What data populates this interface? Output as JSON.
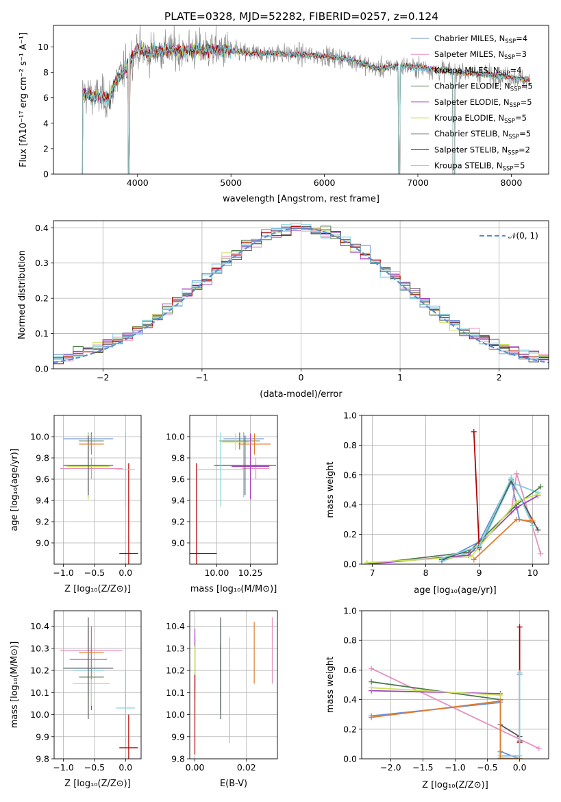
{
  "figure_title": "PLATE=0328, MJD=52282, FIBERID=0257, z=0.124",
  "colors": {
    "models": [
      "#6a8fd8",
      "#e58fbf",
      "#7ec8e3",
      "#4f7a4a",
      "#a63fbf",
      "#c8e35a",
      "#555555",
      "#b30000",
      "#7fd4d4"
    ],
    "orange": "#e07b2a",
    "normal_curve": "#5b8bd6",
    "axis": "#000000",
    "grid": "#b0b0b0"
  },
  "legend": [
    {
      "base": "Chabrier MILES, N",
      "sub": "SSP",
      "tail": "=4"
    },
    {
      "base": "Salpeter MILES, N",
      "sub": "SSP",
      "tail": "=3"
    },
    {
      "base": "Kroupa MILES, N",
      "sub": "SSP",
      "tail": "=4"
    },
    {
      "base": "Chabrier ELODIE, N",
      "sub": "SSP",
      "tail": "=5"
    },
    {
      "base": "Salpeter ELODIE, N",
      "sub": "SSP",
      "tail": "=5"
    },
    {
      "base": "Kroupa ELODIE, N",
      "sub": "SSP",
      "tail": "=5"
    },
    {
      "base": "Chabrier STELIB, N",
      "sub": "SSP",
      "tail": "=5"
    },
    {
      "base": "Salpeter STELIB, N",
      "sub": "SSP",
      "tail": "=2"
    },
    {
      "base": "Kroupa STELIB, N",
      "sub": "SSP",
      "tail": "=5"
    }
  ],
  "chart_data": [
    {
      "id": "spectrum",
      "type": "line",
      "xlabel": "wavelength [Angstrom, rest frame]",
      "ylabel": "Flux [fλ10⁻¹⁷ erg cm⁻² s⁻¹ A⁻¹]",
      "xlim": [
        3100,
        8400
      ],
      "ylim": [
        0,
        11.7
      ],
      "xticks": [
        4000,
        5000,
        6000,
        7000,
        8000
      ],
      "yticks": [
        0,
        2,
        4,
        6,
        8,
        10
      ],
      "grid": false,
      "legend_position": "top-right",
      "data_range_x": [
        3380,
        8200
      ],
      "model_continuum": [
        [
          3380,
          6.4
        ],
        [
          3500,
          6.2
        ],
        [
          3700,
          5.9
        ],
        [
          3760,
          7.2
        ],
        [
          3900,
          8.6
        ],
        [
          4000,
          9.9
        ],
        [
          4100,
          9.5
        ],
        [
          4300,
          9.8
        ],
        [
          4500,
          9.7
        ],
        [
          4800,
          9.8
        ],
        [
          5000,
          9.7
        ],
        [
          5200,
          9.5
        ],
        [
          5500,
          9.5
        ],
        [
          6000,
          9.3
        ],
        [
          6300,
          9.0
        ],
        [
          6560,
          8.3
        ],
        [
          6800,
          8.5
        ],
        [
          7000,
          8.4
        ],
        [
          7200,
          8.2
        ],
        [
          7500,
          8.0
        ],
        [
          7800,
          7.8
        ],
        [
          8000,
          7.6
        ],
        [
          8200,
          7.4
        ]
      ],
      "gaps": [
        [
          3380,
          3410
        ],
        [
          3900,
          3915
        ],
        [
          6790,
          6810
        ],
        [
          7375,
          7395
        ]
      ]
    },
    {
      "id": "residuals",
      "type": "histogram",
      "xlabel": "(data-model)/error",
      "ylabel": "Normed distribution",
      "xlim": [
        -2.5,
        2.5
      ],
      "ylim": [
        0,
        0.42
      ],
      "xticks": [
        -2,
        -1,
        0,
        1,
        2
      ],
      "yticks": [
        0.0,
        0.1,
        0.2,
        0.3,
        0.4
      ],
      "grid": true,
      "legend": "𝒩(0, 1)",
      "legend_position": "top-right",
      "bin_width": 0.1,
      "curve": "normal pdf mean 0 sigma 1"
    },
    {
      "id": "age-vs-z",
      "type": "errorbar",
      "xlabel": "Z [log₁₀(Z/Z⊙)]",
      "ylabel": "age  [log₁₀(age/yr)]",
      "xlim": [
        -1.15,
        0.25
      ],
      "ylim": [
        8.8,
        10.2
      ],
      "xticks": [
        -1.0,
        -0.5,
        0.0
      ],
      "yticks": [
        9.0,
        9.2,
        9.4,
        9.6,
        9.8,
        10.0
      ],
      "grid": true,
      "points": [
        {
          "model": 0,
          "x": -0.6,
          "xerr": 0.4,
          "y": 9.98,
          "yerr": 0.06
        },
        {
          "model": 1,
          "x": -0.55,
          "xerr": 0.5,
          "y": 9.7,
          "yerr": 0.1
        },
        {
          "model": 2,
          "x": -0.6,
          "xerr": 0.25,
          "y": 9.73,
          "yerr": 0.3
        },
        {
          "model": 3,
          "x": -0.55,
          "xerr": 0.2,
          "y": 9.96,
          "yerr": 0.08
        },
        {
          "model": 4,
          "x": -0.6,
          "xerr": 0.3,
          "y": 9.72,
          "yerr": 0.31
        },
        {
          "model": 5,
          "x": -0.6,
          "xerr": 0.35,
          "y": 9.72,
          "yerr": 0.31
        },
        {
          "model": 6,
          "x": -0.6,
          "xerr": 0.4,
          "y": 9.73,
          "yerr": 0.28
        },
        {
          "model": 7,
          "x": 0.05,
          "xerr": 0.15,
          "y": 8.9,
          "yerr": 0.85
        },
        {
          "model": 8,
          "x": 0.0,
          "xerr": 0.15,
          "y": 9.69,
          "yerr": 0.35
        },
        {
          "model": "orange",
          "x": -0.55,
          "xerr": 0.2,
          "y": 9.93,
          "yerr": 0.1
        }
      ]
    },
    {
      "id": "age-vs-mass",
      "type": "errorbar",
      "xlabel": "mass [log₁₀(M/M⊙)]",
      "ylabel": "",
      "xlim": [
        9.8,
        10.45
      ],
      "ylim": [
        8.8,
        10.2
      ],
      "xticks": [
        10.0,
        10.25
      ],
      "yticks": [
        9.0,
        9.2,
        9.4,
        9.6,
        9.8,
        10.0
      ],
      "grid": true,
      "points": [
        {
          "model": 0,
          "x": 10.2,
          "xerr": 0.15,
          "y": 9.98,
          "yerr": 0.06
        },
        {
          "model": 1,
          "x": 10.29,
          "xerr": 0.1,
          "y": 9.7,
          "yerr": 0.1
        },
        {
          "model": 2,
          "x": 10.2,
          "xerr": 0.2,
          "y": 9.73,
          "yerr": 0.3
        },
        {
          "model": 3,
          "x": 10.17,
          "xerr": 0.15,
          "y": 9.96,
          "yerr": 0.08
        },
        {
          "model": 4,
          "x": 10.25,
          "xerr": 0.14,
          "y": 9.72,
          "yerr": 0.31
        },
        {
          "model": 5,
          "x": 10.14,
          "xerr": 0.1,
          "y": 9.95,
          "yerr": 0.08
        },
        {
          "model": 6,
          "x": 10.21,
          "xerr": 0.23,
          "y": 9.73,
          "yerr": 0.28
        },
        {
          "model": 7,
          "x": 9.85,
          "xerr": 0.15,
          "y": 8.9,
          "yerr": 0.85
        },
        {
          "model": 8,
          "x": 10.03,
          "xerr": 0.17,
          "y": 9.69,
          "yerr": 0.35
        },
        {
          "model": "orange",
          "x": 10.28,
          "xerr": 0.12,
          "y": 9.93,
          "yerr": 0.1
        }
      ]
    },
    {
      "id": "massweight-vs-age",
      "type": "line",
      "xlabel": "age  [log₁₀(age/yr)]",
      "ylabel": "mass weight",
      "xlim": [
        6.8,
        10.3
      ],
      "ylim": [
        0,
        1.0
      ],
      "xticks": [
        7,
        8,
        9,
        10
      ],
      "yticks": [
        0.0,
        0.2,
        0.4,
        0.6,
        0.8,
        1.0
      ],
      "grid": true,
      "series": [
        {
          "model": 0,
          "points": [
            [
              8.3,
              0.02
            ],
            [
              9.0,
              0.15
            ],
            [
              9.6,
              0.57
            ],
            [
              9.75,
              0.3
            ],
            [
              10.0,
              0.28
            ]
          ]
        },
        {
          "model": 1,
          "points": [
            [
              9.6,
              0.35
            ],
            [
              9.7,
              0.61
            ],
            [
              10.15,
              0.07
            ]
          ]
        },
        {
          "model": 2,
          "points": [
            [
              8.3,
              0.02
            ],
            [
              9.0,
              0.1
            ],
            [
              9.6,
              0.55
            ],
            [
              10.1,
              0.48
            ]
          ]
        },
        {
          "model": 3,
          "points": [
            [
              6.9,
              0.0
            ],
            [
              8.8,
              0.08
            ],
            [
              9.7,
              0.4
            ],
            [
              10.15,
              0.52
            ]
          ]
        },
        {
          "model": 4,
          "points": [
            [
              6.9,
              0.0
            ],
            [
              8.8,
              0.06
            ],
            [
              9.7,
              0.38
            ],
            [
              10.1,
              0.46
            ]
          ]
        },
        {
          "model": 5,
          "points": [
            [
              6.9,
              0.01
            ],
            [
              8.85,
              0.05
            ],
            [
              9.7,
              0.42
            ],
            [
              10.1,
              0.47
            ]
          ]
        },
        {
          "model": 6,
          "points": [
            [
              8.3,
              0.03
            ],
            [
              9.0,
              0.12
            ],
            [
              9.6,
              0.56
            ],
            [
              10.1,
              0.23
            ]
          ]
        },
        {
          "model": 7,
          "points": [
            [
              8.9,
              0.89
            ],
            [
              9.0,
              0.11
            ]
          ]
        },
        {
          "model": 8,
          "points": [
            [
              8.3,
              0.04
            ],
            [
              9.0,
              0.12
            ],
            [
              9.6,
              0.58
            ],
            [
              10.0,
              0.26
            ]
          ]
        },
        {
          "model": "orange",
          "points": [
            [
              8.9,
              0.03
            ],
            [
              9.7,
              0.3
            ],
            [
              10.0,
              0.29
            ]
          ]
        }
      ]
    },
    {
      "id": "mass-vs-z",
      "type": "errorbar",
      "xlabel": "Z [log₁₀(Z/Z⊙)]",
      "ylabel": "mass [log₁₀(M/M⊙)]",
      "xlim": [
        -1.15,
        0.25
      ],
      "ylim": [
        9.8,
        10.47
      ],
      "xticks": [
        -1.0,
        -0.5,
        0.0
      ],
      "yticks": [
        9.8,
        9.9,
        10.0,
        10.1,
        10.2,
        10.3,
        10.4
      ],
      "grid": true,
      "points": [
        {
          "model": 0,
          "x": -0.6,
          "xerr": 0.4,
          "y": 10.21,
          "yerr": 0.15
        },
        {
          "model": 1,
          "x": -0.55,
          "xerr": 0.5,
          "y": 10.29,
          "yerr": 0.1
        },
        {
          "model": 2,
          "x": -0.6,
          "xerr": 0.25,
          "y": 10.2,
          "yerr": 0.2
        },
        {
          "model": 3,
          "x": -0.55,
          "xerr": 0.2,
          "y": 10.17,
          "yerr": 0.15
        },
        {
          "model": 4,
          "x": -0.6,
          "xerr": 0.3,
          "y": 10.25,
          "yerr": 0.14
        },
        {
          "model": 5,
          "x": -0.55,
          "xerr": 0.3,
          "y": 10.14,
          "yerr": 0.1
        },
        {
          "model": 6,
          "x": -0.6,
          "xerr": 0.4,
          "y": 10.21,
          "yerr": 0.23
        },
        {
          "model": 7,
          "x": 0.05,
          "xerr": 0.15,
          "y": 9.85,
          "yerr": 0.15
        },
        {
          "model": 8,
          "x": 0.0,
          "xerr": 0.15,
          "y": 10.03,
          "yerr": 0.17
        },
        {
          "model": "orange",
          "x": -0.55,
          "xerr": 0.2,
          "y": 10.28,
          "yerr": 0.12
        }
      ]
    },
    {
      "id": "mass-vs-ebv",
      "type": "errorbar",
      "xlabel": "E(B-V)",
      "ylabel": "",
      "xlim": [
        -0.002,
        0.032
      ],
      "ylim": [
        9.8,
        10.47
      ],
      "xticks": [
        0.0,
        0.02
      ],
      "yticks": [
        9.8,
        9.9,
        10.0,
        10.1,
        10.2,
        10.3,
        10.4
      ],
      "grid": true,
      "points": [
        {
          "model": 0,
          "x": 0.0,
          "xerr": 0,
          "y": 10.21,
          "yerr": 0.15
        },
        {
          "model": 1,
          "x": 0.03,
          "xerr": 0,
          "y": 10.29,
          "yerr": 0.15
        },
        {
          "model": 2,
          "x": 0.01,
          "xerr": 0,
          "y": 10.2,
          "yerr": 0.2
        },
        {
          "model": 3,
          "x": 0.01,
          "xerr": 0,
          "y": 10.17,
          "yerr": 0.15
        },
        {
          "model": 4,
          "x": 0.0,
          "xerr": 0,
          "y": 10.25,
          "yerr": 0.14
        },
        {
          "model": 5,
          "x": 0.0,
          "xerr": 0,
          "y": 10.14,
          "yerr": 0.17
        },
        {
          "model": 6,
          "x": 0.01,
          "xerr": 0,
          "y": 10.21,
          "yerr": 0.23
        },
        {
          "model": 7,
          "x": 0.0,
          "xerr": 0,
          "y": 10.0,
          "yerr": 0.18
        },
        {
          "model": 8,
          "x": 0.0135,
          "xerr": 0,
          "y": 10.11,
          "yerr": 0.24
        },
        {
          "model": "orange",
          "x": 0.023,
          "xerr": 0,
          "y": 10.28,
          "yerr": 0.14
        }
      ]
    },
    {
      "id": "massweight-vs-z",
      "type": "line",
      "xlabel": "Z [log₁₀(Z/Z⊙)]",
      "ylabel": "mass weight",
      "xlim": [
        -2.45,
        0.45
      ],
      "ylim": [
        0,
        1.0
      ],
      "xticks": [
        -2.0,
        -1.5,
        -1.0,
        -0.5,
        0.0
      ],
      "yticks": [
        0.0,
        0.2,
        0.4,
        0.6,
        0.8,
        1.0
      ],
      "grid": true,
      "series": [
        {
          "model": 0,
          "points": [
            [
              -2.3,
              0.29
            ],
            [
              -0.3,
              0.38
            ],
            [
              -0.3,
              0.05
            ],
            [
              0.0,
              0.0
            ],
            [
              0.0,
              0.57
            ]
          ]
        },
        {
          "model": 1,
          "points": [
            [
              -2.3,
              0.61
            ],
            [
              0.3,
              0.07
            ]
          ]
        },
        {
          "model": 2,
          "points": [
            [
              -0.3,
              0.02
            ],
            [
              0.0,
              0.02
            ]
          ]
        },
        {
          "model": 3,
          "points": [
            [
              -2.3,
              0.52
            ],
            [
              -0.3,
              0.4
            ],
            [
              -0.3,
              0.0
            ],
            [
              0.0,
              0.0
            ]
          ]
        },
        {
          "model": 4,
          "points": [
            [
              -2.3,
              0.46
            ],
            [
              -0.3,
              0.44
            ],
            [
              -0.3,
              0.0
            ]
          ]
        },
        {
          "model": 5,
          "points": [
            [
              -2.3,
              0.48
            ],
            [
              -0.3,
              0.43
            ],
            [
              -0.3,
              0.01
            ],
            [
              0.0,
              0.0
            ]
          ]
        },
        {
          "model": 6,
          "points": [
            [
              -0.3,
              0.23
            ],
            [
              0.0,
              0.15
            ],
            [
              0.0,
              0.12
            ]
          ]
        },
        {
          "model": 7,
          "points": [
            [
              0.0,
              0.89
            ],
            [
              0.0,
              0.11
            ]
          ]
        },
        {
          "model": 8,
          "points": [
            [
              -0.3,
              0.04
            ],
            [
              -0.3,
              0.0
            ],
            [
              0.0,
              0.0
            ],
            [
              0.0,
              0.58
            ]
          ]
        },
        {
          "model": "orange",
          "points": [
            [
              -2.3,
              0.28
            ],
            [
              -0.3,
              0.39
            ],
            [
              -0.3,
              0.0
            ],
            [
              0.0,
              0.0
            ]
          ]
        }
      ]
    }
  ]
}
